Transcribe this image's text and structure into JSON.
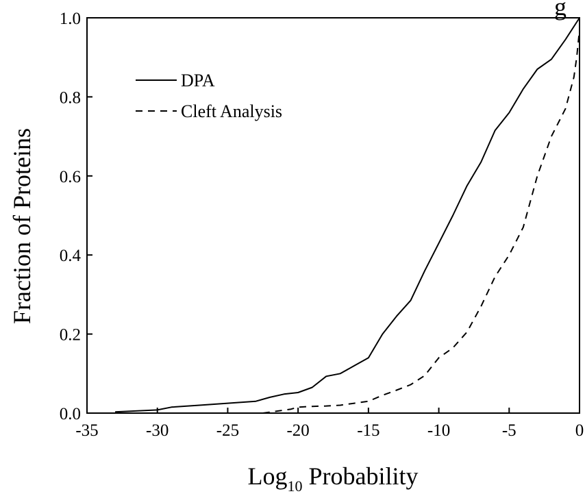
{
  "chart_data": {
    "type": "line",
    "title": "g",
    "xlabel": "Log",
    "xlabel_subscript": "10",
    "xlabel_suffix": "Probability",
    "ylabel": "Fraction of Proteins",
    "xlim": [
      -35,
      0
    ],
    "ylim": [
      0.0,
      1.0
    ],
    "x_ticks": [
      -35,
      -30,
      -25,
      -20,
      -15,
      -10,
      -5,
      0
    ],
    "x_tick_labels": [
      "-35",
      "-30",
      "-25",
      "-20",
      "-15",
      "-10",
      "-5",
      "0"
    ],
    "y_ticks": [
      0.0,
      0.2,
      0.4,
      0.6,
      0.8,
      1.0
    ],
    "y_tick_labels": [
      "0.0",
      "0.2",
      "0.4",
      "0.6",
      "0.8",
      "1.0"
    ],
    "grid": false,
    "legend_position": "top-left",
    "series": [
      {
        "name": "DPA",
        "style": "solid",
        "color": "#000000",
        "x": [
          -33,
          -30,
          -29,
          -27,
          -25,
          -23,
          -22,
          -21,
          -20,
          -19,
          -18,
          -17,
          -16,
          -15,
          -14,
          -13,
          -12,
          -11,
          -10,
          -9,
          -8,
          -7,
          -6,
          -5,
          -4,
          -3,
          -2,
          -1,
          0
        ],
        "y": [
          0.003,
          0.008,
          0.015,
          0.02,
          0.025,
          0.03,
          0.04,
          0.048,
          0.052,
          0.065,
          0.093,
          0.1,
          0.12,
          0.14,
          0.2,
          0.245,
          0.285,
          0.36,
          0.43,
          0.5,
          0.575,
          0.635,
          0.715,
          0.76,
          0.82,
          0.87,
          0.895,
          0.945,
          1.0
        ]
      },
      {
        "name": "Cleft Analysis",
        "style": "dashed",
        "color": "#000000",
        "x": [
          -22.5,
          -21.5,
          -20.5,
          -20,
          -19,
          -18,
          -17,
          -16,
          -15,
          -14,
          -13,
          -12,
          -11,
          -10,
          -9,
          -8,
          -7,
          -6,
          -5,
          -4,
          -3,
          -2,
          -1,
          -0.4,
          -0.2,
          0
        ],
        "y": [
          0.0,
          0.005,
          0.01,
          0.015,
          0.017,
          0.018,
          0.02,
          0.025,
          0.03,
          0.045,
          0.058,
          0.072,
          0.095,
          0.14,
          0.165,
          0.205,
          0.27,
          0.345,
          0.4,
          0.47,
          0.6,
          0.7,
          0.77,
          0.85,
          0.9,
          0.97
        ]
      }
    ]
  }
}
